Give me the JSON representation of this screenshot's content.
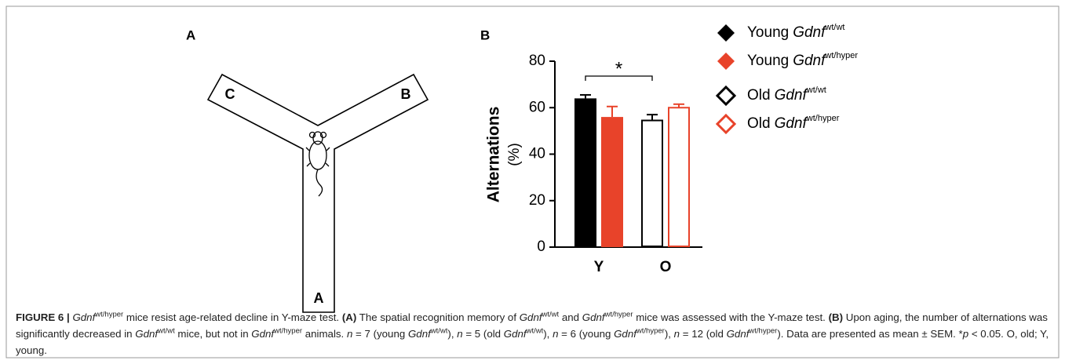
{
  "panel_labels": [
    "A",
    "B"
  ],
  "maze": {
    "arms": [
      "C",
      "B",
      "A"
    ]
  },
  "chart_data": {
    "type": "bar",
    "y_label": "Alternations",
    "y_unit": "(%)",
    "categories": [
      "Y",
      "O"
    ],
    "ylim": [
      0,
      80
    ],
    "yticks": [
      0,
      20,
      40,
      60,
      80
    ],
    "annotations": [
      "*"
    ],
    "series": [
      {
        "name": [
          "Young",
          "Gdnf",
          "wt/wt"
        ],
        "color": "#000000",
        "fill": true,
        "values": [
          64,
          null
        ],
        "errors": [
          1.5,
          null
        ]
      },
      {
        "name": [
          "Young",
          "Gdnf",
          "wt/hyper"
        ],
        "color": "#e8432a",
        "fill": true,
        "values": [
          56,
          null
        ],
        "errors": [
          4.5,
          null
        ]
      },
      {
        "name": [
          "Old",
          "Gdnf",
          "wt/wt"
        ],
        "color": "#000000",
        "fill": false,
        "values": [
          null,
          54.5
        ],
        "errors": [
          null,
          2.5
        ]
      },
      {
        "name": [
          "Old",
          "Gdnf",
          "wt/hyper"
        ],
        "color": "#e8432a",
        "fill": false,
        "values": [
          null,
          60
        ],
        "errors": [
          null,
          1.5
        ]
      }
    ]
  },
  "caption": [
    {
      "t": "FIGURE 6 | ",
      "style": "bold"
    },
    {
      "t": "Gdnf",
      "style": "italic"
    },
    {
      "t": "wt/hyper",
      "style": "sup"
    },
    {
      "t": " mice resist age-related decline in Y-maze test. ",
      "style": "normal"
    },
    {
      "t": "(A)",
      "style": "bold"
    },
    {
      "t": " The spatial recognition memory of ",
      "style": "normal"
    },
    {
      "t": "Gdnf",
      "style": "italic"
    },
    {
      "t": "wt/wt",
      "style": "sup"
    },
    {
      "t": " and ",
      "style": "normal"
    },
    {
      "t": "Gdnf",
      "style": "italic"
    },
    {
      "t": "wt/hyper",
      "style": "sup"
    },
    {
      "t": " mice was assessed with the Y-maze test. ",
      "style": "normal"
    },
    {
      "t": "(B)",
      "style": "bold"
    },
    {
      "t": " Upon aging, the number of alternations was significantly decreased in ",
      "style": "normal"
    },
    {
      "t": "Gdnf",
      "style": "italic"
    },
    {
      "t": "wt/wt",
      "style": "sup"
    },
    {
      "t": " mice, but not in ",
      "style": "normal"
    },
    {
      "t": "Gdnf",
      "style": "italic"
    },
    {
      "t": "wt/hyper",
      "style": "sup"
    },
    {
      "t": " animals. ",
      "style": "normal"
    },
    {
      "t": "n",
      "style": "italic"
    },
    {
      "t": " = 7 (young ",
      "style": "normal"
    },
    {
      "t": "Gdnf",
      "style": "italic"
    },
    {
      "t": "wt/wt",
      "style": "sup"
    },
    {
      "t": "), ",
      "style": "normal"
    },
    {
      "t": "n",
      "style": "italic"
    },
    {
      "t": " = 5 (old ",
      "style": "normal"
    },
    {
      "t": "Gdnf",
      "style": "italic"
    },
    {
      "t": "wt/wt",
      "style": "sup"
    },
    {
      "t": "), ",
      "style": "normal"
    },
    {
      "t": "n",
      "style": "italic"
    },
    {
      "t": " = 6 (young ",
      "style": "normal"
    },
    {
      "t": "Gdnf",
      "style": "italic"
    },
    {
      "t": "wt/hyper",
      "style": "sup"
    },
    {
      "t": "), ",
      "style": "normal"
    },
    {
      "t": "n",
      "style": "italic"
    },
    {
      "t": " = 12 (old ",
      "style": "normal"
    },
    {
      "t": "Gdnf",
      "style": "italic"
    },
    {
      "t": "wt/hyper",
      "style": "sup"
    },
    {
      "t": "). Data are presented as mean ± SEM. *",
      "style": "normal"
    },
    {
      "t": "p",
      "style": "italic"
    },
    {
      "t": " < 0.05. O, old; Y, young.",
      "style": "normal"
    }
  ]
}
